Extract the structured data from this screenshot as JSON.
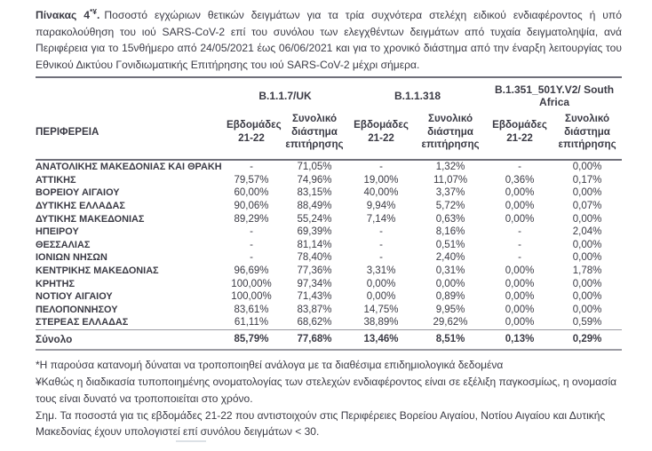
{
  "title": {
    "bold_prefix": "Πίνακας 4",
    "superscript": "*¥",
    "bold_suffix": ".",
    "text": "Ποσοστό εγχώριων θετικών δειγμάτων για τα τρία συχνότερα στελέχη ειδικού ενδιαφέροντος ή υπό παρακολούθηση του ιού SARS-CoV-2 επί του συνόλου των ελεγχθέντων δειγμάτων από τυχαία δειγματοληψία, ανά Περιφέρεια για το 15νθήμερο από 24/05/2021 έως 06/06/2021 και για το χρονικό διάστημα από την έναρξη λειτουργίας του Εθνικού Δικτύου Γονιδιωματικής Επιτήρησης του ιού SARS-CoV-2 μέχρι σήμερα."
  },
  "table": {
    "region_header": "ΠΕΡΙΦΕΡΕΙΑ",
    "variant_groups": [
      "B.1.1.7/UK",
      "B.1.1.318",
      "B.1.351_501Y.V2/ South Africa"
    ],
    "subcolumns": [
      "Εβδομάδες 21-22",
      "Συνολικό διάστημα επιτήρησης"
    ],
    "rows": [
      {
        "region": "ΑΝΑΤΟΛΙΚΗΣ ΜΑΚΕΔΟΝΙΑΣ ΚΑΙ ΘΡΑΚΗΣ",
        "values": [
          "-",
          "71,05%",
          "-",
          "1,32%",
          "-",
          "0,00%"
        ]
      },
      {
        "region": "ΑΤΤΙΚΗΣ",
        "values": [
          "79,57%",
          "74,96%",
          "19,00%",
          "11,07%",
          "0,36%",
          "0,17%"
        ]
      },
      {
        "region": "ΒΟΡΕΙΟΥ ΑΙΓΑΙΟΥ",
        "values": [
          "60,00%",
          "83,15%",
          "40,00%",
          "3,37%",
          "0,00%",
          "0,00%"
        ]
      },
      {
        "region": "ΔΥΤΙΚΗΣ ΕΛΛΑΔΑΣ",
        "values": [
          "90,06%",
          "88,49%",
          "9,94%",
          "5,72%",
          "0,00%",
          "0,07%"
        ]
      },
      {
        "region": "ΔΥΤΙΚΗΣ ΜΑΚΕΔΟΝΙΑΣ",
        "values": [
          "89,29%",
          "55,24%",
          "7,14%",
          "0,63%",
          "0,00%",
          "0,00%"
        ]
      },
      {
        "region": "ΗΠΕΙΡΟΥ",
        "values": [
          "-",
          "69,39%",
          "-",
          "8,16%",
          "-",
          "2,04%"
        ]
      },
      {
        "region": "ΘΕΣΣΑΛΙΑΣ",
        "values": [
          "-",
          "81,14%",
          "-",
          "0,51%",
          "-",
          "0,00%"
        ]
      },
      {
        "region": "ΙΟΝΙΩΝ ΝΗΣΩΝ",
        "values": [
          "-",
          "78,40%",
          "-",
          "2,40%",
          "-",
          "0,00%"
        ]
      },
      {
        "region": "ΚΕΝΤΡΙΚΗΣ ΜΑΚΕΔΟΝΙΑΣ",
        "values": [
          "96,69%",
          "77,36%",
          "3,31%",
          "0,31%",
          "0,00%",
          "1,78%"
        ]
      },
      {
        "region": "ΚΡΗΤΗΣ",
        "values": [
          "100,00%",
          "97,34%",
          "0,00%",
          "0,00%",
          "0,00%",
          "0,00%"
        ]
      },
      {
        "region": "ΝΟΤΙΟΥ ΑΙΓΑΙΟΥ",
        "values": [
          "100,00%",
          "71,43%",
          "0,00%",
          "0,89%",
          "0,00%",
          "0,00%"
        ]
      },
      {
        "region": "ΠΕΛΟΠΟΝΝΗΣΟΥ",
        "values": [
          "83,61%",
          "83,87%",
          "14,75%",
          "9,95%",
          "0,00%",
          "0,00%"
        ]
      },
      {
        "region": "ΣΤΕΡΕΑΣ ΕΛΛΑΔΑΣ",
        "values": [
          "61,11%",
          "68,62%",
          "38,89%",
          "29,62%",
          "0,00%",
          "0,59%"
        ]
      }
    ],
    "total_row": {
      "region": "Σύνολο",
      "values": [
        "85,79%",
        "77,68%",
        "13,46%",
        "8,51%",
        "0,13%",
        "0,29%"
      ]
    }
  },
  "footnotes": [
    "*Η παρούσα κατανομή δύναται να τροποποιηθεί ανάλογα με τα διαθέσιμα επιδημιολογικά δεδομένα",
    "¥Καθώς η διαδικασία τυποποιημένης ονοματολογίας των στελεχών ενδιαφέροντος είναι σε εξέλιξη παγκοσμίως, η ονομασία τους είναι δυνατό να τροποποιείται στο χρόνο.",
    "Σημ.  Τα ποσοστά για τις εβδομάδες 21-22 που αντιστοιχούν στις Περιφέρειες Βορείου Αιγαίου, Νοτίου Αιγαίου και Δυτικής Μακεδονίας έχουν υπολογιστεί επί συνόλου δειγμάτων < 30."
  ],
  "colors": {
    "text": "#3b3b45",
    "rule_dark": "#70707a",
    "rule_light": "#9b9ba3",
    "background": "#ffffff"
  }
}
